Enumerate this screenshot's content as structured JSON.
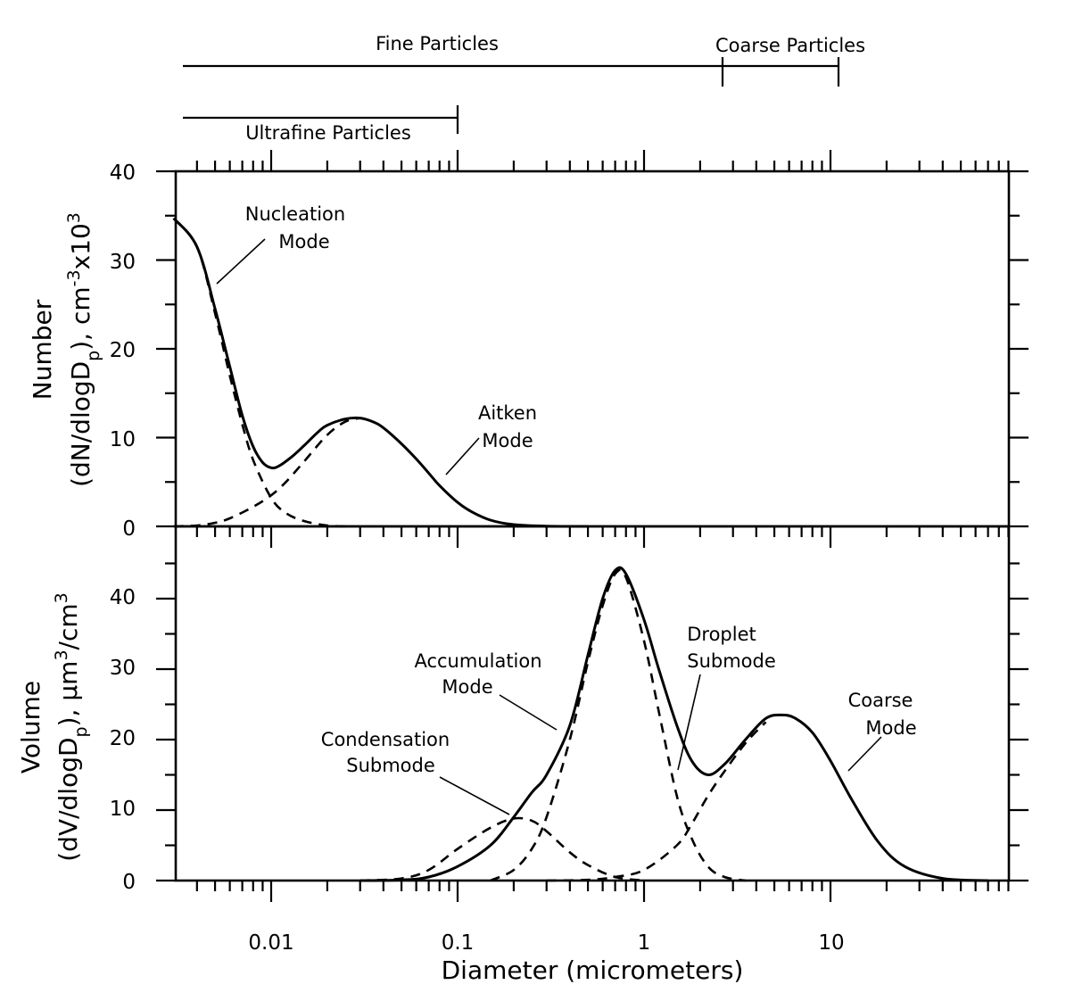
{
  "chart_data": [
    {
      "type": "line",
      "panel": "number",
      "xscale": "log",
      "xlim": [
        0.003,
        90
      ],
      "ylim": [
        0,
        40
      ],
      "ylabel": "Number (dN/dlogDp), cm-3x103",
      "yticks": [
        "0",
        "10",
        "20",
        "30",
        "40"
      ],
      "series": [
        {
          "style": "solid",
          "x": [
            0.003,
            0.004,
            0.005,
            0.006,
            0.007,
            0.008,
            0.009,
            0.01,
            0.011,
            0.013,
            0.015,
            0.018,
            0.02,
            0.025,
            0.03,
            0.035,
            0.04,
            0.05,
            0.06,
            0.07,
            0.08,
            0.1,
            0.12,
            0.15,
            0.2,
            0.3,
            0.5
          ],
          "y": [
            34.7,
            31.5,
            24.5,
            18,
            12.5,
            9,
            7.2,
            6.6,
            6.8,
            7.9,
            9.1,
            10.7,
            11.4,
            12.1,
            12.2,
            11.8,
            11.1,
            9.3,
            7.6,
            6.0,
            4.6,
            2.7,
            1.6,
            0.7,
            0.2,
            0.03,
            0
          ]
        },
        {
          "style": "dashed",
          "x": [
            0.003,
            0.004,
            0.005,
            0.006,
            0.007,
            0.008,
            0.01,
            0.012,
            0.015,
            0.02,
            0.025
          ],
          "y": [
            34.7,
            31.5,
            24,
            17,
            11.5,
            7.5,
            3.2,
            1.5,
            0.6,
            0.1,
            0
          ]
        },
        {
          "style": "dashed",
          "x": [
            0.003,
            0.004,
            0.005,
            0.006,
            0.008,
            0.01,
            0.012,
            0.015,
            0.02,
            0.025,
            0.03
          ],
          "y": [
            0,
            0.1,
            0.4,
            0.9,
            2.2,
            3.5,
            5,
            7.3,
            10.3,
            11.8,
            12.2
          ]
        }
      ],
      "annotations": [
        "Nucleation Mode",
        "Aitken Mode"
      ]
    },
    {
      "type": "line",
      "panel": "volume",
      "xscale": "log",
      "xlim": [
        0.003,
        90
      ],
      "ylim": [
        0,
        45
      ],
      "ylabel": "Volume (dV/dlogDp), μm3/cm3",
      "xlabel": "Diameter (micrometers)",
      "xticks": [
        "0.01",
        "0.1",
        "1",
        "10"
      ],
      "yticks": [
        "0",
        "10",
        "20",
        "30",
        "40"
      ],
      "series": [
        {
          "style": "solid",
          "x": [
            0.03,
            0.05,
            0.07,
            0.1,
            0.15,
            0.2,
            0.25,
            0.3,
            0.4,
            0.5,
            0.6,
            0.7,
            0.8,
            1.0,
            1.2,
            1.5,
            1.8,
            2.2,
            2.7,
            3.5,
            4.5,
            5.5,
            6.5,
            8,
            10,
            13,
            18,
            25,
            40,
            70
          ],
          "y": [
            0,
            0.1,
            0.5,
            2,
            5,
            9,
            12.5,
            15,
            22,
            32,
            40,
            44,
            43.5,
            37,
            30,
            22,
            17,
            15,
            16.5,
            20,
            23,
            23.5,
            23,
            21,
            17,
            11.5,
            5.5,
            2,
            0.3,
            0
          ]
        },
        {
          "style": "dashed",
          "x": [
            0.03,
            0.05,
            0.07,
            0.1,
            0.15,
            0.2,
            0.25,
            0.3,
            0.4,
            0.5,
            0.7,
            1.0
          ],
          "y": [
            0,
            0.3,
            1.5,
            4.5,
            7.5,
            8.8,
            8.5,
            7,
            4,
            2.2,
            0.5,
            0
          ]
        },
        {
          "style": "dashed",
          "x": [
            0.15,
            0.2,
            0.25,
            0.3,
            0.4,
            0.5,
            0.6,
            0.7,
            0.8,
            1.0,
            1.2,
            1.5,
            1.8,
            2.2,
            2.7,
            3.5
          ],
          "y": [
            0,
            1.5,
            4.5,
            9,
            20,
            31,
            39,
            43.5,
            43,
            34,
            24,
            12,
            6,
            2,
            0.5,
            0
          ]
        },
        {
          "style": "dashed",
          "x": [
            0.3,
            0.5,
            0.7,
            1.0,
            1.5,
            1.8,
            2.2,
            2.7,
            3.5,
            4.5
          ],
          "y": [
            0,
            0.1,
            0.5,
            1.5,
            5,
            8,
            12,
            15.5,
            19.5,
            22.5
          ]
        }
      ],
      "annotations": [
        "Accumulation Mode",
        "Condensation Submode",
        "Droplet Submode",
        "Coarse Mode"
      ]
    }
  ],
  "ranges": {
    "fine_label": "Fine Particles",
    "coarse_label": "Coarse Particles",
    "ultrafine_label": "Ultrafine Particles"
  },
  "labels": {
    "nucleation_1": "Nucleation",
    "nucleation_2": "Mode",
    "aitken_1": "Aitken",
    "aitken_2": "Mode",
    "accumulation_1": "Accumulation",
    "accumulation_2": "Mode",
    "condensation_1": "Condensation",
    "condensation_2": "Submode",
    "droplet_1": "Droplet",
    "droplet_2": "Submode",
    "coarse_1": "Coarse",
    "coarse_2": "Mode"
  }
}
